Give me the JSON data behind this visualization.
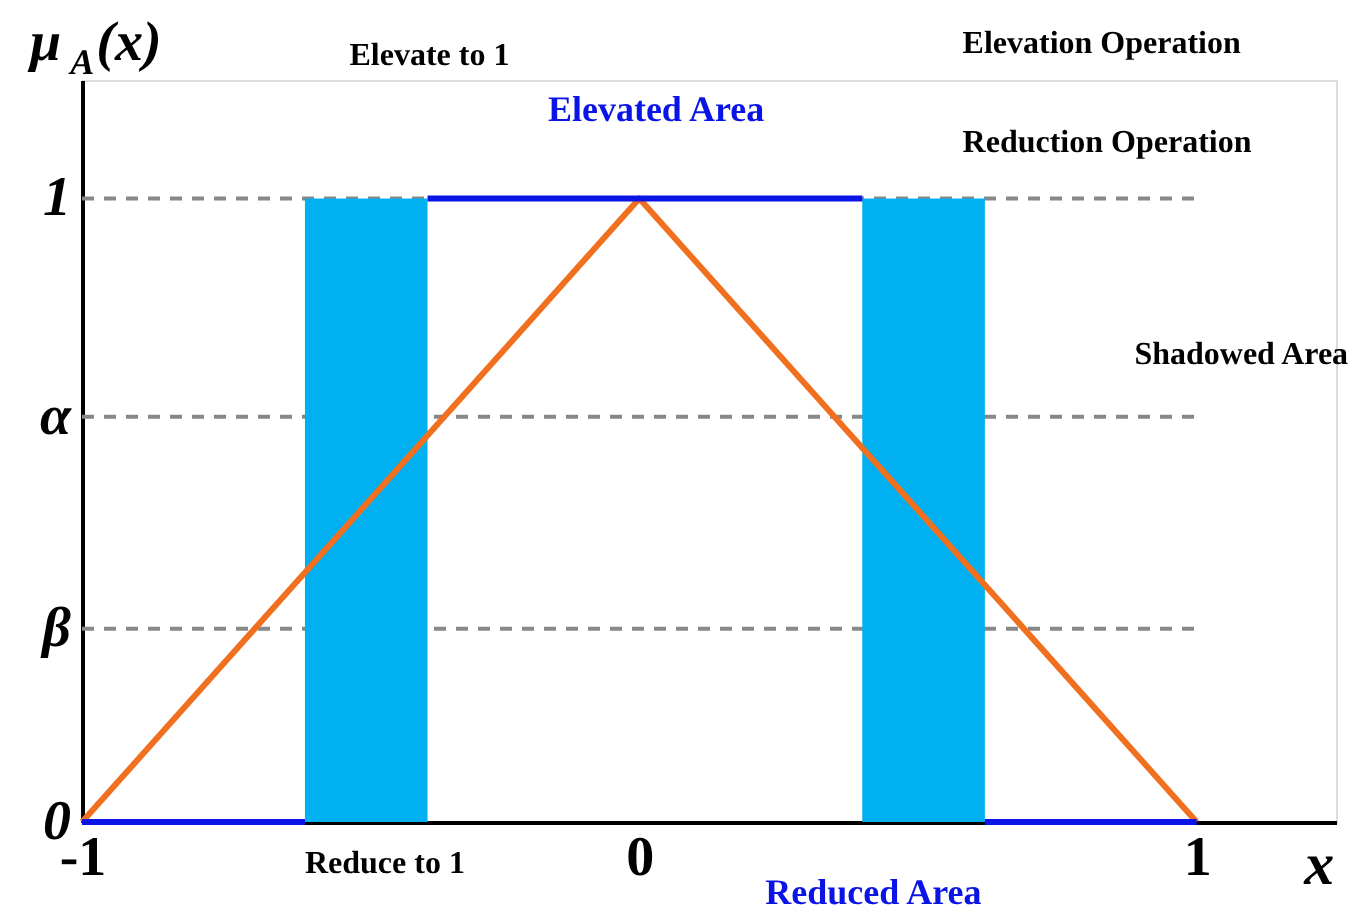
{
  "chart_data": {
    "type": "line",
    "xlabel": "x",
    "ylabel": "μ$_{A}$(x)",
    "xlim": [
      -1,
      1.25
    ],
    "ylim": [
      0,
      1.19
    ],
    "xticks": [
      -1,
      0,
      1
    ],
    "yticks": [
      0,
      {
        "value": 0.31,
        "label": "β"
      },
      {
        "value": 0.65,
        "label": "α"
      },
      1
    ],
    "series": [
      {
        "color": "#f07020",
        "x": [
          -1,
          0,
          1
        ],
        "values": [
          0,
          1,
          0
        ]
      },
      {
        "color": "#0a14e6",
        "x": [
          -1,
          -0.6,
          -0.5,
          -0.38,
          0.4,
          0.5,
          0.62,
          1
        ],
        "values": [
          0,
          0,
          null,
          1,
          1,
          null,
          0,
          0
        ]
      }
    ],
    "bands": [
      {
        "axis": "x",
        "from": -0.6,
        "to": -0.38,
        "color": "#00b0f0"
      },
      {
        "axis": "x",
        "from": 0.4,
        "to": 0.62,
        "color": "#00b0f0"
      }
    ],
    "ref_lines": [
      {
        "axis": "y",
        "value": 1,
        "color": "#888888",
        "line_style": "dashed"
      },
      {
        "axis": "y",
        "value": 0.65,
        "color": "#888888",
        "line_style": "dashed"
      },
      {
        "axis": "y",
        "value": 0.31,
        "color": "#888888",
        "line_style": "dashed"
      }
    ],
    "annotations": [
      "Elevated Area",
      "Reduced Area",
      "Elevate to 1",
      "Reduce to 1",
      "Elevation Operation",
      "Reduction Operation",
      "Shadowed Area"
    ],
    "grid": false,
    "marker": "none",
    "line_style": "solid"
  }
}
